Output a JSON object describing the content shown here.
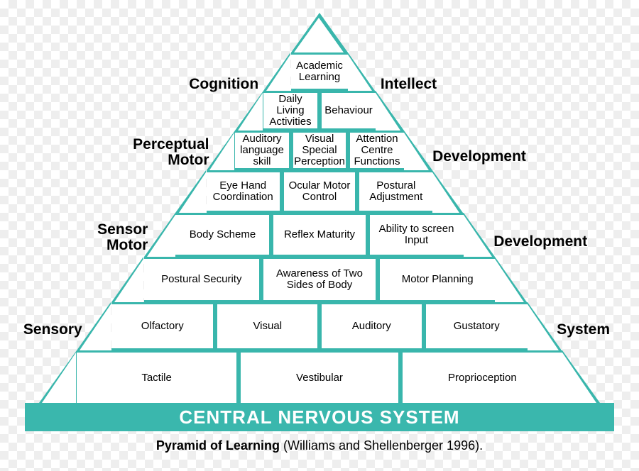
{
  "diagram": {
    "type": "infographic",
    "title": "Pyramid of Learning",
    "citation": "(Williams and Shellenberger 1996).",
    "colors": {
      "line": "#39b6ac",
      "box_fill": "#ffffff",
      "base_fill": "#3ab7ad",
      "base_text": "#ffffff",
      "text": "#000000",
      "background": "#ffffff"
    },
    "stroke_width": 3,
    "cell_fontsize": 15,
    "side_label_fontsize": 21,
    "base_fontsize": 26,
    "caption_fontsize": 18,
    "base_label": "CENTRAL NERVOUS SYSTEM",
    "rows": [
      {
        "cells": [
          "Academic Learning"
        ]
      },
      {
        "cells": [
          "Daily Living Activities",
          "Behaviour"
        ]
      },
      {
        "cells": [
          "Auditory language skill",
          "Visual Special Perception",
          "Attention Centre Functions"
        ]
      },
      {
        "cells": [
          "Eye Hand Coordination",
          "Ocular Motor Control",
          "Postural Adjustment"
        ]
      },
      {
        "cells": [
          "Body Scheme",
          "Reflex Maturity",
          "Ability to screen Input"
        ]
      },
      {
        "cells": [
          "Postural Security",
          "Awareness of Two Sides of Body",
          "Motor Planning"
        ]
      },
      {
        "cells": [
          "Olfactory",
          "Visual",
          "Auditory",
          "Gustatory"
        ]
      },
      {
        "cells": [
          "Tactile",
          "Vestibular",
          "Proprioception"
        ]
      }
    ],
    "side_labels": {
      "left": [
        "Cognition",
        "Perceptual Motor",
        "Sensor Motor",
        "Sensory"
      ],
      "right": [
        "Intellect",
        "Development",
        "Development",
        "System"
      ]
    }
  }
}
